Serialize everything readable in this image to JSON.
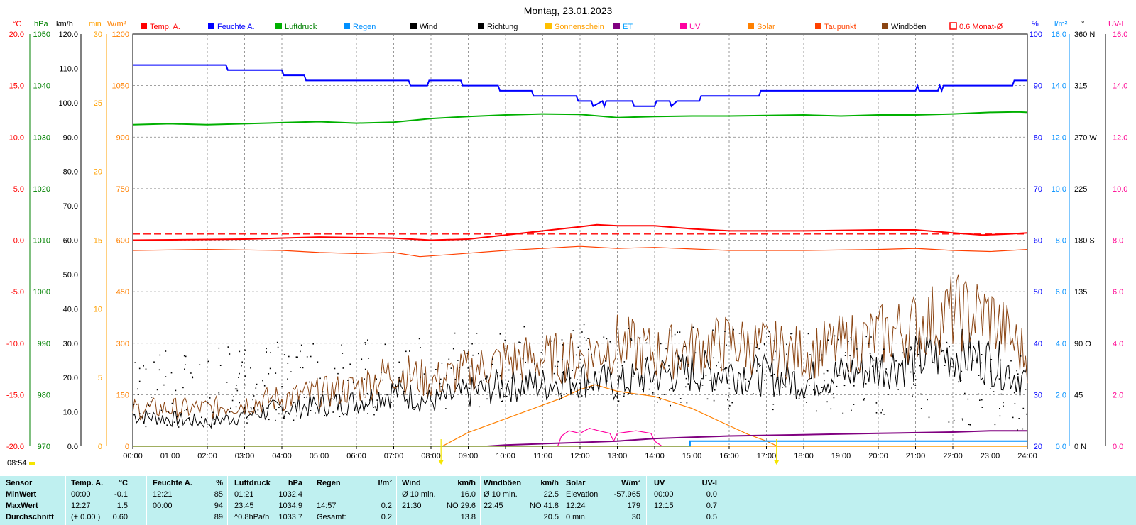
{
  "title": "Montag, 23.01.2023",
  "legend": [
    {
      "label": "Temp. A.",
      "color": "#ff0000",
      "text_color": "#ff0000",
      "box": "filled"
    },
    {
      "label": "Feuchte A.",
      "color": "#0000ff",
      "text_color": "#0000ff",
      "box": "filled"
    },
    {
      "label": "Luftdruck",
      "color": "#00b000",
      "text_color": "#008000",
      "box": "filled"
    },
    {
      "label": "Regen",
      "color": "#0090ff",
      "text_color": "#0090ff",
      "box": "filled"
    },
    {
      "label": "Wind",
      "color": "#000000",
      "text_color": "#000000",
      "box": "filled"
    },
    {
      "label": "Richtung",
      "color": "#000000",
      "text_color": "#000000",
      "box": "filled"
    },
    {
      "label": "Sonnenschein",
      "color": "#ffc000",
      "text_color": "#ffa000",
      "box": "filled"
    },
    {
      "label": "ET",
      "color": "#800080",
      "text_color": "#00a0ff",
      "box": "filled"
    },
    {
      "label": "UV",
      "color": "#ff00a0",
      "text_color": "#ff00a0",
      "box": "filled"
    },
    {
      "label": "Solar",
      "color": "#ff8000",
      "text_color": "#ff8000",
      "box": "filled"
    },
    {
      "label": "Taupunkt",
      "color": "#ff4000",
      "text_color": "#ff4000",
      "box": "filled"
    },
    {
      "label": "Windböen",
      "color": "#8b4513",
      "text_color": "#000000",
      "box": "filled"
    },
    {
      "label": "0.6 Monat-Ø",
      "color": "#ff0000",
      "text_color": "#ff0000",
      "box": "outline"
    }
  ],
  "axes": {
    "temp": {
      "unit": "°C",
      "color": "#ff0000",
      "ticks": [
        "20.0",
        "15.0",
        "10.0",
        "5.0",
        "0.0",
        "-5.0",
        "-10.0",
        "-15.0",
        "-20.0"
      ]
    },
    "pressure": {
      "unit": "hPa",
      "color": "#008000",
      "ticks": [
        "1050",
        "1040",
        "1030",
        "1020",
        "1010",
        "1000",
        "990",
        "980",
        "970"
      ]
    },
    "wind": {
      "unit": "km/h",
      "color": "#000000",
      "ticks": [
        "120.0",
        "110.0",
        "100.0",
        "90.0",
        "80.0",
        "70.0",
        "60.0",
        "50.0",
        "40.0",
        "30.0",
        "20.0",
        "10.0",
        "0.0"
      ]
    },
    "sunshine": {
      "unit": "min",
      "color": "#ffa000",
      "ticks": [
        "30",
        "25",
        "20",
        "15",
        "10",
        "5",
        "0"
      ]
    },
    "solar": {
      "unit": "W/m²",
      "color": "#ff8000",
      "ticks": [
        "1200",
        "1050",
        "900",
        "750",
        "600",
        "450",
        "300",
        "150",
        "0"
      ]
    },
    "humidity": {
      "unit": "%",
      "color": "#0000ff",
      "ticks": [
        "100",
        "90",
        "80",
        "70",
        "60",
        "50",
        "40",
        "30",
        "20"
      ]
    },
    "rain": {
      "unit": "l/m²",
      "color": "#0090ff",
      "ticks": [
        "16.0",
        "14.0",
        "12.0",
        "10.0",
        "8.0",
        "6.0",
        "4.0",
        "2.0",
        "0.0"
      ]
    },
    "direction": {
      "unit": "°",
      "color": "#000000",
      "ticks": [
        "360 N",
        "315",
        "270 W",
        "225",
        "180 S",
        "135",
        "90 O",
        "45",
        "0 N"
      ]
    },
    "uv": {
      "unit": "UV-I",
      "color": "#ff0090",
      "ticks": [
        "16.0",
        "14.0",
        "12.0",
        "10.0",
        "8.0",
        "6.0",
        "4.0",
        "2.0",
        "0.0"
      ]
    },
    "x_ticks": [
      "00:00",
      "01:00",
      "02:00",
      "03:00",
      "04:00",
      "05:00",
      "06:00",
      "07:00",
      "08:00",
      "09:00",
      "10:00",
      "11:00",
      "12:00",
      "13:00",
      "14:00",
      "15:00",
      "16:00",
      "17:00",
      "18:00",
      "19:00",
      "20:00",
      "21:00",
      "22:00",
      "23:00",
      "24:00"
    ]
  },
  "chart_data": {
    "type": "line",
    "title": "Montag, 23.01.2023",
    "x_range_hours": [
      0,
      24
    ],
    "grid": true,
    "series": [
      {
        "name": "Temp. A.",
        "color": "#ff0000",
        "axis": "temp",
        "points": [
          [
            0,
            0.0
          ],
          [
            3,
            0.1
          ],
          [
            5,
            0.3
          ],
          [
            7,
            0.2
          ],
          [
            8,
            0.0
          ],
          [
            9,
            0.1
          ],
          [
            10,
            0.5
          ],
          [
            11,
            0.9
          ],
          [
            12,
            1.3
          ],
          [
            12.45,
            1.5
          ],
          [
            13,
            1.4
          ],
          [
            14,
            1.4
          ],
          [
            15,
            1.1
          ],
          [
            16,
            0.9
          ],
          [
            18,
            0.9
          ],
          [
            20,
            1.0
          ],
          [
            21,
            1.0
          ],
          [
            22,
            0.7
          ],
          [
            22.8,
            0.5
          ],
          [
            23.5,
            0.6
          ],
          [
            24,
            0.7
          ]
        ]
      },
      {
        "name": "Feuchte A.",
        "color": "#0000ff",
        "axis": "humidity",
        "points": [
          [
            0,
            94
          ],
          [
            2.5,
            94
          ],
          [
            2.55,
            93
          ],
          [
            4,
            93
          ],
          [
            4.05,
            92
          ],
          [
            4.6,
            92
          ],
          [
            4.65,
            91
          ],
          [
            7.4,
            91
          ],
          [
            7.45,
            90
          ],
          [
            7.9,
            90
          ],
          [
            7.95,
            91
          ],
          [
            8.8,
            91
          ],
          [
            8.85,
            90
          ],
          [
            9.8,
            90
          ],
          [
            9.85,
            89
          ],
          [
            10.7,
            89
          ],
          [
            10.75,
            88
          ],
          [
            11.9,
            88
          ],
          [
            11.95,
            87
          ],
          [
            12.3,
            87
          ],
          [
            12.35,
            86
          ],
          [
            12.6,
            87
          ],
          [
            12.65,
            86
          ],
          [
            12.7,
            87
          ],
          [
            13.4,
            87
          ],
          [
            13.45,
            86
          ],
          [
            14,
            86
          ],
          [
            14.05,
            87
          ],
          [
            14.4,
            87
          ],
          [
            14.45,
            86
          ],
          [
            14.6,
            87
          ],
          [
            15.2,
            87
          ],
          [
            15.25,
            88
          ],
          [
            16.8,
            88
          ],
          [
            16.85,
            89
          ],
          [
            21,
            89
          ],
          [
            21.05,
            90
          ],
          [
            21.1,
            89
          ],
          [
            21.6,
            89
          ],
          [
            21.65,
            90
          ],
          [
            21.7,
            89
          ],
          [
            21.75,
            90
          ],
          [
            23.6,
            90
          ],
          [
            23.65,
            91
          ],
          [
            24,
            91
          ]
        ]
      },
      {
        "name": "Luftdruck",
        "color": "#00b000",
        "axis": "pressure",
        "points": [
          [
            0,
            1032.4
          ],
          [
            1,
            1032.6
          ],
          [
            2,
            1032.4
          ],
          [
            3,
            1032.6
          ],
          [
            4,
            1032.8
          ],
          [
            5,
            1033.0
          ],
          [
            6,
            1032.7
          ],
          [
            7,
            1032.9
          ],
          [
            8,
            1033.6
          ],
          [
            9,
            1034.0
          ],
          [
            10,
            1034.3
          ],
          [
            11,
            1034.5
          ],
          [
            12,
            1034.4
          ],
          [
            13,
            1033.8
          ],
          [
            14,
            1034.0
          ],
          [
            15,
            1034.1
          ],
          [
            16,
            1034.1
          ],
          [
            17,
            1034.2
          ],
          [
            18,
            1034.3
          ],
          [
            19,
            1034.1
          ],
          [
            20,
            1034.3
          ],
          [
            21,
            1034.3
          ],
          [
            22,
            1034.5
          ],
          [
            23,
            1034.8
          ],
          [
            23.75,
            1034.9
          ],
          [
            24,
            1034.8
          ]
        ]
      },
      {
        "name": "0.6 Monat-Ø",
        "color": "#ff0000",
        "axis": "temp",
        "points": [
          [
            0,
            0.6
          ],
          [
            24,
            0.6
          ]
        ]
      },
      {
        "name": "Taupunkt",
        "color": "#ff4000",
        "axis": "temp",
        "points": [
          [
            0,
            -1.0
          ],
          [
            2,
            -0.9
          ],
          [
            4,
            -1.0
          ],
          [
            5,
            -1.2
          ],
          [
            6,
            -1.3
          ],
          [
            7,
            -1.2
          ],
          [
            7.7,
            -1.6
          ],
          [
            8.5,
            -1.4
          ],
          [
            10,
            -1.0
          ],
          [
            12,
            -0.6
          ],
          [
            13,
            -0.8
          ],
          [
            14,
            -0.7
          ],
          [
            16,
            -1.0
          ],
          [
            18,
            -1.0
          ],
          [
            20,
            -0.9
          ],
          [
            21,
            -0.8
          ],
          [
            22,
            -1.0
          ],
          [
            23,
            -1.1
          ],
          [
            24,
            -0.9
          ]
        ]
      },
      {
        "name": "Solar",
        "color": "#ff8000",
        "axis": "solar",
        "points": [
          [
            0,
            0
          ],
          [
            8.3,
            0
          ],
          [
            9,
            40
          ],
          [
            10,
            80
          ],
          [
            11,
            120
          ],
          [
            11.5,
            140
          ],
          [
            12,
            165
          ],
          [
            12.4,
            179
          ],
          [
            13,
            160
          ],
          [
            14,
            145
          ],
          [
            15,
            110
          ],
          [
            16,
            60
          ],
          [
            16.5,
            35
          ],
          [
            17,
            15
          ],
          [
            17.3,
            0
          ],
          [
            24,
            0
          ]
        ]
      },
      {
        "name": "UV",
        "color": "#ff00a0",
        "axis": "uv",
        "points": [
          [
            0,
            0
          ],
          [
            11.4,
            0
          ],
          [
            11.5,
            0.4
          ],
          [
            11.7,
            0.6
          ],
          [
            12,
            0.5
          ],
          [
            12.25,
            0.7
          ],
          [
            12.5,
            0.6
          ],
          [
            12.8,
            0.5
          ],
          [
            12.9,
            0.2
          ],
          [
            13,
            0.5
          ],
          [
            13.5,
            0.6
          ],
          [
            13.9,
            0.5
          ],
          [
            14,
            0.2
          ],
          [
            14.2,
            0
          ],
          [
            24,
            0
          ]
        ]
      },
      {
        "name": "ET",
        "color": "#800080",
        "axis": "rain",
        "points": [
          [
            0,
            0
          ],
          [
            9.5,
            0
          ],
          [
            10,
            0.05
          ],
          [
            11,
            0.1
          ],
          [
            12,
            0.15
          ],
          [
            13,
            0.2
          ],
          [
            14,
            0.3
          ],
          [
            15,
            0.35
          ],
          [
            16,
            0.4
          ],
          [
            18,
            0.45
          ],
          [
            20,
            0.5
          ],
          [
            22,
            0.55
          ],
          [
            23,
            0.6
          ],
          [
            24,
            0.6
          ]
        ]
      },
      {
        "name": "Regen",
        "color": "#0090ff",
        "axis": "rain",
        "points": [
          [
            0,
            0
          ],
          [
            14.95,
            0
          ],
          [
            14.95,
            0.2
          ],
          [
            24,
            0.2
          ]
        ]
      },
      {
        "name": "Sonnenschein",
        "color": "#ffc000",
        "axis": "sunshine",
        "points": [
          [
            0,
            0
          ],
          [
            24,
            0
          ]
        ]
      },
      {
        "name": "Wind",
        "color": "#000000",
        "axis": "wind",
        "style": "noisy",
        "points": [
          [
            0,
            9
          ],
          [
            2,
            7
          ],
          [
            4,
            11
          ],
          [
            6,
            13
          ],
          [
            7,
            16
          ],
          [
            8,
            13
          ],
          [
            10,
            18
          ],
          [
            11,
            18
          ],
          [
            12,
            20
          ],
          [
            13,
            18
          ],
          [
            14,
            21
          ],
          [
            16,
            22
          ],
          [
            18,
            19
          ],
          [
            20,
            23
          ],
          [
            21,
            25
          ],
          [
            22,
            27
          ],
          [
            23,
            25
          ],
          [
            24,
            19
          ]
        ]
      },
      {
        "name": "Windböen",
        "color": "#8b4513",
        "axis": "wind",
        "style": "noisy",
        "points": [
          [
            0,
            11
          ],
          [
            2,
            11
          ],
          [
            4,
            14
          ],
          [
            6,
            17
          ],
          [
            7,
            22
          ],
          [
            8,
            19
          ],
          [
            10,
            25
          ],
          [
            12,
            26
          ],
          [
            13,
            30
          ],
          [
            14,
            27
          ],
          [
            16,
            30
          ],
          [
            18,
            27
          ],
          [
            20,
            32
          ],
          [
            21,
            35
          ],
          [
            22,
            39
          ],
          [
            23,
            38
          ],
          [
            24,
            26
          ]
        ]
      },
      {
        "name": "Richtung",
        "color": "#000000",
        "axis": "direction",
        "style": "dots",
        "points": [
          [
            0,
            50
          ],
          [
            3,
            55
          ],
          [
            6,
            62
          ],
          [
            9,
            68
          ],
          [
            12,
            75
          ],
          [
            15,
            70
          ],
          [
            18,
            65
          ],
          [
            21,
            60
          ],
          [
            24,
            48
          ]
        ]
      }
    ]
  },
  "axis_markers": [
    {
      "label": "sunrise",
      "hour": 8.27,
      "color": "#f5e500"
    },
    {
      "label": "sunset",
      "hour": 17.27,
      "color": "#f5e500"
    }
  ],
  "timestamp": "08:54",
  "stats": {
    "rows": [
      [
        "Sensor",
        "Temp. A.",
        "°C",
        "Feuchte A.",
        "%",
        "Luftdruck",
        "hPa",
        "Regen",
        "l/m²",
        "Wind",
        "km/h",
        "Windböen",
        "km/h",
        "Solar",
        "W/m²",
        "UV",
        "UV-I"
      ],
      [
        "MinWert",
        "00:00",
        "-0.1",
        "12:21",
        "85",
        "01:21",
        "1032.4",
        "",
        "",
        "Ø 10 min.",
        "16.0",
        "Ø 10 min.",
        "22.5",
        "Elevation",
        "-57.965",
        "00:00",
        "0.0"
      ],
      [
        "MaxWert",
        "12:27",
        "1.5",
        "00:00",
        "94",
        "23:45",
        "1034.9",
        "14:57",
        "0.2",
        "21:30",
        "NO 29.6",
        "22:45",
        "NO 41.8",
        "12:24",
        "179",
        "12:15",
        "0.7"
      ],
      [
        "Durchschnitt",
        "(+ 0.00 )",
        "0.60",
        "",
        "89",
        "^0.8hPa/h",
        "1033.7",
        "Gesamt:",
        "0.2",
        "",
        "13.8",
        "",
        "20.5",
        "0 min.",
        "30",
        "",
        "0.5"
      ]
    ]
  }
}
